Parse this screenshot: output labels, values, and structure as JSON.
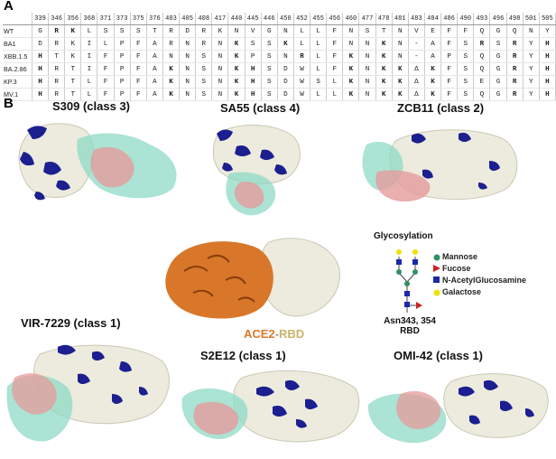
{
  "panel_a": {
    "letter": "A",
    "positions": [
      "339",
      "346",
      "356",
      "368",
      "371",
      "373",
      "375",
      "376",
      "403",
      "405",
      "408",
      "417",
      "440",
      "445",
      "446",
      "450",
      "452",
      "455",
      "456",
      "460",
      "477",
      "478",
      "481",
      "483",
      "484",
      "486",
      "490",
      "493",
      "496",
      "498",
      "501",
      "505"
    ],
    "rows": [
      {
        "name": "WT",
        "residues": [
          "G",
          "R",
          "K",
          "L",
          "S",
          "S",
          "S",
          "T",
          "R",
          "D",
          "R",
          "K",
          "N",
          "V",
          "G",
          "N",
          "L",
          "L",
          "F",
          "N",
          "S",
          "T",
          "N",
          "V",
          "E",
          "F",
          "F",
          "Q",
          "G",
          "Q",
          "N",
          "Y"
        ]
      },
      {
        "name": "BA1",
        "residues": [
          "D",
          "R",
          "K",
          "I",
          "L",
          "P",
          "F",
          "A",
          "R",
          "N",
          "R",
          "N",
          "K",
          "S",
          "S",
          "K",
          "L",
          "L",
          "F",
          "N",
          "N",
          "K",
          "N",
          "-",
          "A",
          "F",
          "S",
          "R",
          "S",
          "R",
          "Y",
          "H"
        ]
      },
      {
        "name": "XBB.1.5",
        "residues": [
          "H",
          "T",
          "K",
          "I",
          "F",
          "P",
          "F",
          "A",
          "N",
          "N",
          "S",
          "N",
          "K",
          "P",
          "S",
          "N",
          "R",
          "L",
          "F",
          "K",
          "N",
          "K",
          "N",
          "-",
          "A",
          "P",
          "S",
          "Q",
          "G",
          "R",
          "Y",
          "H"
        ]
      },
      {
        "name": "BA.2.86",
        "residues": [
          "H",
          "R",
          "T",
          "I",
          "F",
          "P",
          "F",
          "A",
          "K",
          "N",
          "S",
          "N",
          "K",
          "H",
          "S",
          "D",
          "W",
          "L",
          "F",
          "K",
          "N",
          "K",
          "K",
          "Δ",
          "K",
          "F",
          "S",
          "Q",
          "G",
          "R",
          "Y",
          "H"
        ]
      },
      {
        "name": "KP.3",
        "residues": [
          "H",
          "R",
          "T",
          "L",
          "F",
          "P",
          "F",
          "A",
          "K",
          "N",
          "S",
          "N",
          "K",
          "H",
          "S",
          "D",
          "W",
          "S",
          "L",
          "K",
          "N",
          "K",
          "K",
          "Δ",
          "K",
          "F",
          "S",
          "E",
          "G",
          "R",
          "Y",
          "H"
        ]
      },
      {
        "name": "MV.1",
        "residues": [
          "H",
          "R",
          "T",
          "L",
          "F",
          "P",
          "F",
          "A",
          "K",
          "N",
          "S",
          "N",
          "K",
          "H",
          "S",
          "D",
          "W",
          "L",
          "L",
          "K",
          "N",
          "K",
          "K",
          "Δ",
          "K",
          "F",
          "S",
          "Q",
          "G",
          "R",
          "Y",
          "H"
        ]
      }
    ]
  },
  "panel_b": {
    "letter": "B",
    "complexes": {
      "s309": "S309 (class 3)",
      "sa55": "SA55 (class 4)",
      "zcb11": "ZCB11 (class 2)",
      "vir7229": "VIR-7229 (class 1)",
      "s2e12": "S2E12 (class 1)",
      "omi42": "OMI-42 (class 1)"
    },
    "center": {
      "ace2": "ACE2",
      "dash": "-",
      "rbd": "RBD"
    },
    "legend": {
      "title": "Glycosylation",
      "items": [
        "Mannose",
        "Fucose",
        "N-AcetylGlucosamine",
        "Galactose"
      ],
      "site_line1": "Asn343, 354",
      "site_line2": "RBD"
    },
    "colors": {
      "surface": "#ecebdd",
      "glycan": "#1b1f8f",
      "antibody_heavy": "#e59b9b",
      "antibody_light": "#8fdac6",
      "ace2": "#d8772a",
      "mannose": "#2f8f64",
      "fucose": "#cc2222",
      "glcnac": "#1b28a8",
      "galactose": "#f2e000"
    }
  }
}
